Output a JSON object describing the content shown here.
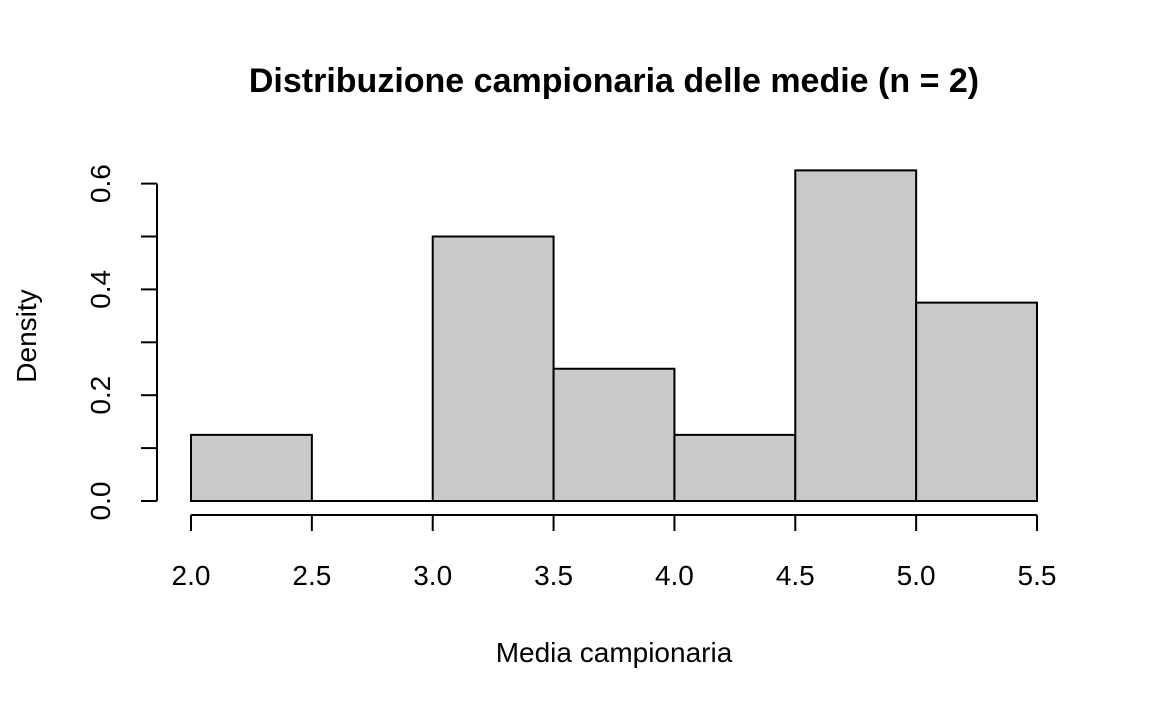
{
  "chart_data": {
    "type": "bar",
    "subtype": "histogram",
    "title": "Distribuzione campionaria delle medie (n = 2)",
    "xlabel": "Media campionaria",
    "ylabel": "Density",
    "bins": [
      {
        "from": 2.0,
        "to": 2.5,
        "density": 0.125
      },
      {
        "from": 2.5,
        "to": 3.0,
        "density": 0.0
      },
      {
        "from": 3.0,
        "to": 3.5,
        "density": 0.5
      },
      {
        "from": 3.5,
        "to": 4.0,
        "density": 0.25
      },
      {
        "from": 4.0,
        "to": 4.5,
        "density": 0.125
      },
      {
        "from": 4.5,
        "to": 5.0,
        "density": 0.625
      },
      {
        "from": 5.0,
        "to": 5.5,
        "density": 0.375
      }
    ],
    "xlim": [
      2.0,
      5.5
    ],
    "ylim": [
      0,
      0.625
    ],
    "x_ticks": [
      "2.0",
      "2.5",
      "3.0",
      "3.5",
      "4.0",
      "4.5",
      "5.0",
      "5.5"
    ],
    "y_ticks": [
      "0.0",
      "0.2",
      "0.4",
      "0.6"
    ],
    "y_minor_ticks": [
      0.1,
      0.3,
      0.5
    ],
    "bar_fill": "#c9c9c9",
    "bar_stroke": "#000000",
    "grid": false,
    "legend": "none"
  }
}
